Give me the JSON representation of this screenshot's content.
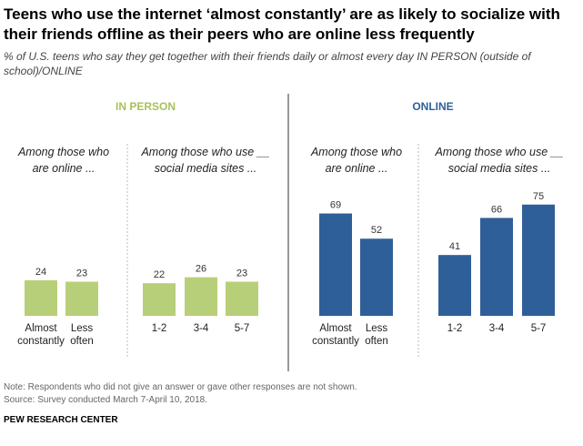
{
  "title": "Teens who use the internet ‘almost constantly’ are as likely to socialize with their friends offline as their peers who are online less frequently",
  "subtitle": "% of U.S. teens who say they get together with their friends daily or almost every day IN PERSON (outside of school)/ONLINE",
  "colors": {
    "in_person": "#b8cf79",
    "online": "#2f5f98",
    "in_person_label": "#a8c15a",
    "online_label": "#2f5f98",
    "divider": "#555555",
    "dotted": "#bbbbbb"
  },
  "chart_data": [
    {
      "type": "bar",
      "panel": "IN PERSON",
      "group_title": "Among those who are online ...",
      "categories": [
        "Almost constantly",
        "Less often"
      ],
      "values": [
        24,
        23
      ],
      "ylim": [
        0,
        100
      ]
    },
    {
      "type": "bar",
      "panel": "IN PERSON",
      "group_title": "Among those who use __ social media sites ...",
      "categories": [
        "1-2",
        "3-4",
        "5-7"
      ],
      "values": [
        22,
        26,
        23
      ],
      "ylim": [
        0,
        100
      ]
    },
    {
      "type": "bar",
      "panel": "ONLINE",
      "group_title": "Among those who are online ...",
      "categories": [
        "Almost constantly",
        "Less often"
      ],
      "values": [
        69,
        52
      ],
      "ylim": [
        0,
        100
      ]
    },
    {
      "type": "bar",
      "panel": "ONLINE",
      "group_title": "Among those who use __ social media sites ...",
      "categories": [
        "1-2",
        "3-4",
        "5-7"
      ],
      "values": [
        41,
        66,
        75
      ],
      "ylim": [
        0,
        100
      ]
    }
  ],
  "panels": {
    "in_person": "IN PERSON",
    "online": "ONLINE"
  },
  "group_titles": {
    "online_line1": "Among those who",
    "online_line2": "are online ...",
    "social_line1": "Among those who use __",
    "social_line2": "social media sites ..."
  },
  "footer": {
    "note": "Note: Respondents who did not give an answer or gave other responses are not shown.",
    "source": "Source: Survey conducted March 7-April 10, 2018.",
    "brand": "PEW RESEARCH CENTER"
  }
}
